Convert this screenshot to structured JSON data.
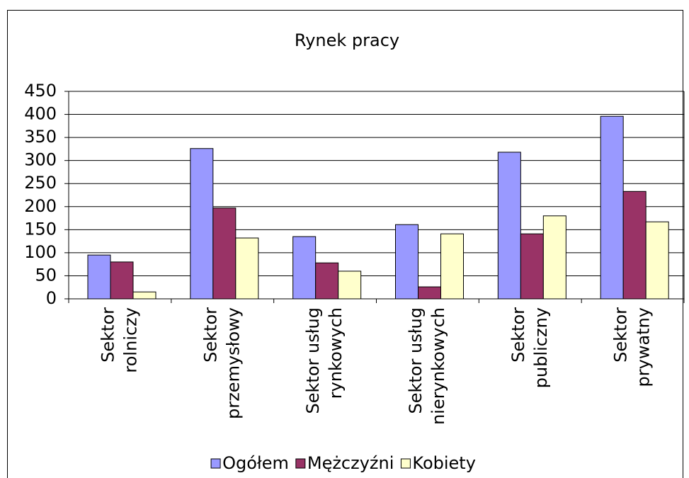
{
  "chart_data": {
    "type": "bar",
    "title": "Rynek pracy",
    "categories": [
      [
        "Sektor",
        "rolniczy"
      ],
      [
        "Sektor",
        "przemysłowy"
      ],
      [
        "Sektor usług",
        "rynkowych"
      ],
      [
        "Sektor usług",
        "nierynkowych"
      ],
      [
        "Sektor",
        "publiczny"
      ],
      [
        "Sektor",
        "prywatny"
      ]
    ],
    "series": [
      {
        "name": "Ogółem",
        "color": "#9999ff",
        "values": [
          95,
          326,
          135,
          161,
          318,
          396
        ]
      },
      {
        "name": "Mężczyźni",
        "color": "#993366",
        "values": [
          80,
          197,
          78,
          26,
          141,
          233
        ]
      },
      {
        "name": "Kobiety",
        "color": "#ffffcc",
        "values": [
          15,
          132,
          60,
          141,
          180,
          167
        ]
      }
    ],
    "ylim": [
      0,
      450
    ],
    "yticks": [
      0,
      50,
      100,
      150,
      200,
      250,
      300,
      350,
      400,
      450
    ],
    "grid": true,
    "legend": "bottom"
  }
}
